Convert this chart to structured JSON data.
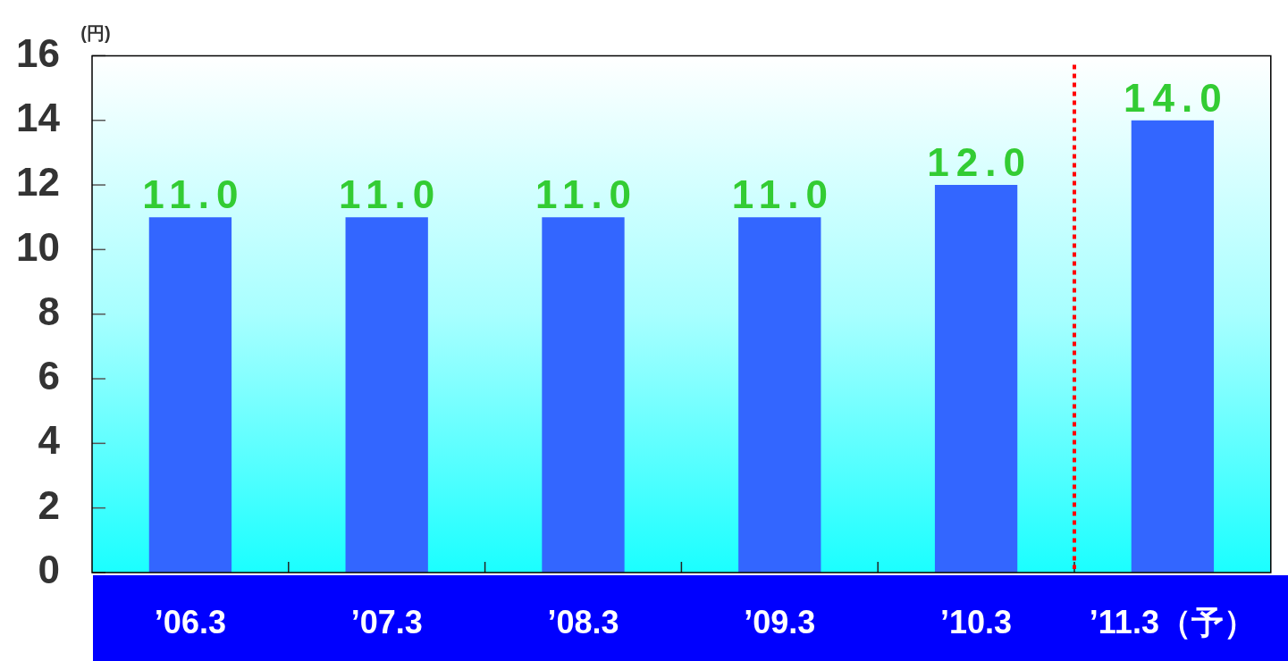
{
  "chart_data": {
    "type": "bar",
    "ylabel": "(円)",
    "x": [
      "2006-03",
      "2007-03",
      "2008-03",
      "2009-03",
      "2010-03",
      "2011-03"
    ],
    "values": [
      11,
      11,
      11,
      11,
      12,
      14
    ],
    "color": "#3366ff",
    "value_labels": [
      "11.0",
      "11.0",
      "11.0",
      "11.0",
      "12.0",
      "14.0"
    ],
    "xlim": [
      "2005-09",
      "2011-09"
    ],
    "xticks": [
      {
        "value": "2006-03",
        "label": "’06.3"
      },
      {
        "value": "2007-03",
        "label": "’07.3"
      },
      {
        "value": "2008-03",
        "label": "’08.3"
      },
      {
        "value": "2009-03",
        "label": "’09.3"
      },
      {
        "value": "2010-03",
        "label": "’10.3"
      },
      {
        "value": "2011-03",
        "label": "’11.3（予）"
      }
    ],
    "ylim": [
      0,
      16
    ],
    "yticks": [
      0,
      2,
      4,
      6,
      8,
      10,
      12,
      14,
      16
    ],
    "grid": false,
    "legend": false,
    "ref_lines": [
      {
        "axis": "x",
        "value": "2010-09",
        "color": "#ff0000",
        "line_style": "dotted"
      }
    ]
  }
}
